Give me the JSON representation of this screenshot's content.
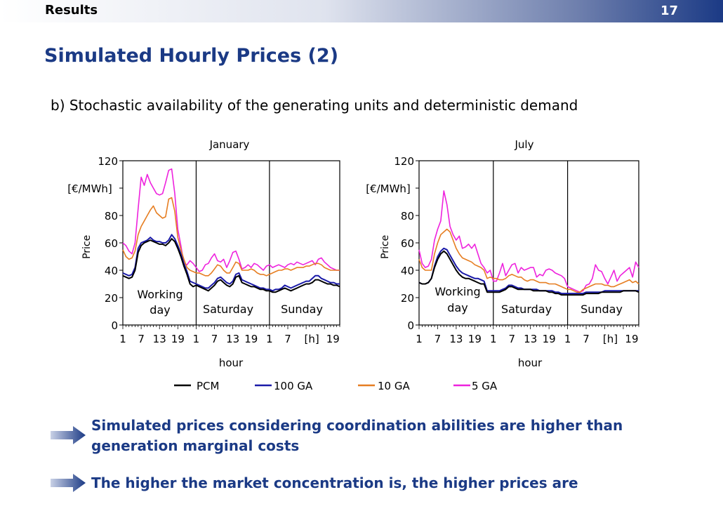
{
  "header": {
    "section": "Results",
    "page_number": "17"
  },
  "title": "Simulated Hourly Prices (2)",
  "subtitle": "b) Stochastic availability of the generating units and deterministic demand",
  "bullets": [
    "Simulated prices considering coordination abilities are higher than generation marginal costs",
    "The higher the market concentration is, the higher prices are"
  ],
  "colors": {
    "accent": "#1b3a85",
    "pcm": "#000000",
    "ga100": "#1a1aa8",
    "ga10": "#e67e22",
    "ga5": "#ee22dd"
  },
  "chart_data": [
    {
      "type": "line",
      "title": "January",
      "xlabel": "hour",
      "ylabel": "Price",
      "unit_label": "[€/MWh]",
      "ylim": [
        0,
        120
      ],
      "yticks": [
        "0",
        "20",
        "40",
        "60",
        "80",
        "120"
      ],
      "xlim": [
        1,
        72
      ],
      "xticks": [
        "1",
        "7",
        "13",
        "19",
        "1",
        "7",
        "13",
        "19",
        "1",
        "7",
        "[h]",
        "19"
      ],
      "day_labels": [
        "Working day",
        "Saturday",
        "Sunday"
      ],
      "series": [
        {
          "name": "PCM",
          "values": [
            36,
            35,
            34,
            35,
            40,
            53,
            58,
            60,
            61,
            62,
            61,
            60,
            59,
            59,
            58,
            60,
            63,
            61,
            56,
            50,
            43,
            37,
            30,
            28,
            29,
            28,
            27,
            26,
            25,
            27,
            29,
            32,
            33,
            31,
            29,
            28,
            30,
            35,
            36,
            31,
            30,
            29,
            28,
            28,
            27,
            26,
            26,
            25,
            25,
            24,
            24,
            25,
            26,
            27,
            26,
            25,
            26,
            27,
            28,
            29,
            30,
            30,
            31,
            33,
            33,
            32,
            31,
            30,
            30,
            29,
            29,
            28
          ]
        },
        {
          "name": "100 GA",
          "values": [
            38,
            37,
            36,
            37,
            42,
            56,
            60,
            61,
            62,
            64,
            62,
            61,
            61,
            60,
            60,
            62,
            66,
            63,
            58,
            52,
            45,
            39,
            32,
            31,
            30,
            29,
            28,
            27,
            27,
            29,
            31,
            34,
            35,
            33,
            31,
            30,
            32,
            37,
            38,
            33,
            32,
            31,
            30,
            29,
            28,
            27,
            27,
            26,
            26,
            25,
            26,
            26,
            27,
            29,
            28,
            27,
            28,
            29,
            30,
            31,
            32,
            32,
            34,
            36,
            36,
            34,
            33,
            32,
            31,
            31,
            30,
            30
          ]
        },
        {
          "name": "10 GA",
          "values": [
            55,
            50,
            48,
            49,
            54,
            66,
            72,
            76,
            80,
            84,
            87,
            82,
            80,
            78,
            79,
            92,
            93,
            83,
            64,
            55,
            48,
            42,
            40,
            39,
            38,
            38,
            37,
            36,
            36,
            38,
            41,
            44,
            43,
            40,
            38,
            38,
            42,
            46,
            45,
            40,
            40,
            40,
            41,
            40,
            38,
            37,
            37,
            36,
            37,
            38,
            39,
            40,
            40,
            41,
            41,
            40,
            41,
            42,
            42,
            42,
            43,
            43,
            44,
            45,
            45,
            44,
            42,
            41,
            40,
            40,
            40,
            40
          ]
        },
        {
          "name": "5 GA",
          "values": [
            60,
            58,
            54,
            52,
            60,
            85,
            108,
            102,
            110,
            104,
            100,
            96,
            95,
            96,
            104,
            113,
            114,
            96,
            70,
            58,
            45,
            44,
            47,
            45,
            42,
            39,
            40,
            44,
            45,
            49,
            52,
            47,
            46,
            48,
            42,
            47,
            53,
            54,
            48,
            41,
            42,
            44,
            42,
            45,
            44,
            42,
            40,
            43,
            44,
            42,
            43,
            44,
            43,
            42,
            44,
            45,
            44,
            46,
            45,
            44,
            45,
            46,
            47,
            44,
            48,
            49,
            46,
            44,
            42,
            41,
            40,
            40
          ]
        }
      ]
    },
    {
      "type": "line",
      "title": "July",
      "xlabel": "hour",
      "ylabel": "Price",
      "unit_label": "[€/MWh]",
      "ylim": [
        0,
        120
      ],
      "yticks": [
        "0",
        "20",
        "40",
        "60",
        "80",
        "120"
      ],
      "xlim": [
        1,
        72
      ],
      "xticks": [
        "1",
        "7",
        "13",
        "19",
        "1",
        "7",
        "13",
        "19",
        "1",
        "7",
        "[h]",
        "19"
      ],
      "day_labels": [
        "Working day",
        "Saturday",
        "Sunday"
      ],
      "series": [
        {
          "name": "PCM",
          "values": [
            31,
            30,
            30,
            31,
            34,
            42,
            48,
            52,
            54,
            52,
            48,
            44,
            40,
            37,
            35,
            34,
            34,
            33,
            32,
            31,
            30,
            30,
            24,
            24,
            24,
            24,
            24,
            25,
            26,
            28,
            28,
            27,
            26,
            26,
            26,
            26,
            26,
            25,
            25,
            25,
            25,
            25,
            24,
            24,
            23,
            23,
            22,
            22,
            22,
            22,
            22,
            22,
            22,
            22,
            23,
            23,
            23,
            23,
            23,
            24,
            24,
            24,
            24,
            24,
            24,
            24,
            25,
            25,
            25,
            25,
            25,
            24
          ]
        },
        {
          "name": "100 GA",
          "values": [
            31,
            30,
            30,
            31,
            34,
            43,
            50,
            54,
            56,
            55,
            51,
            47,
            43,
            40,
            38,
            37,
            36,
            35,
            34,
            34,
            33,
            32,
            25,
            25,
            25,
            25,
            25,
            26,
            27,
            29,
            29,
            28,
            27,
            27,
            26,
            26,
            26,
            26,
            26,
            25,
            25,
            25,
            25,
            25,
            24,
            24,
            23,
            23,
            23,
            23,
            23,
            23,
            23,
            23,
            24,
            24,
            24,
            24,
            24,
            24,
            25,
            25,
            25,
            25,
            25,
            25,
            25,
            25,
            25,
            25,
            25,
            25
          ]
        },
        {
          "name": "10 GA",
          "values": [
            48,
            42,
            40,
            40,
            40,
            52,
            60,
            66,
            68,
            70,
            68,
            62,
            56,
            52,
            49,
            48,
            47,
            46,
            44,
            43,
            42,
            40,
            34,
            35,
            34,
            34,
            33,
            33,
            34,
            36,
            37,
            36,
            35,
            35,
            33,
            32,
            33,
            33,
            32,
            31,
            31,
            31,
            30,
            30,
            30,
            29,
            28,
            27,
            26,
            26,
            25,
            24,
            24,
            26,
            27,
            28,
            29,
            30,
            30,
            30,
            29,
            29,
            28,
            28,
            29,
            30,
            31,
            32,
            33,
            31,
            32,
            30
          ]
        },
        {
          "name": "5 GA",
          "values": [
            55,
            45,
            42,
            43,
            48,
            62,
            70,
            76,
            98,
            88,
            72,
            66,
            62,
            65,
            56,
            57,
            59,
            56,
            59,
            52,
            45,
            42,
            38,
            40,
            32,
            32,
            38,
            45,
            36,
            40,
            44,
            45,
            38,
            42,
            40,
            41,
            42,
            42,
            35,
            37,
            36,
            40,
            41,
            40,
            38,
            37,
            36,
            34,
            28,
            27,
            26,
            25,
            24,
            25,
            29,
            30,
            34,
            44,
            40,
            39,
            34,
            30,
            35,
            40,
            32,
            36,
            38,
            40,
            42,
            35,
            46,
            42
          ]
        }
      ]
    }
  ]
}
